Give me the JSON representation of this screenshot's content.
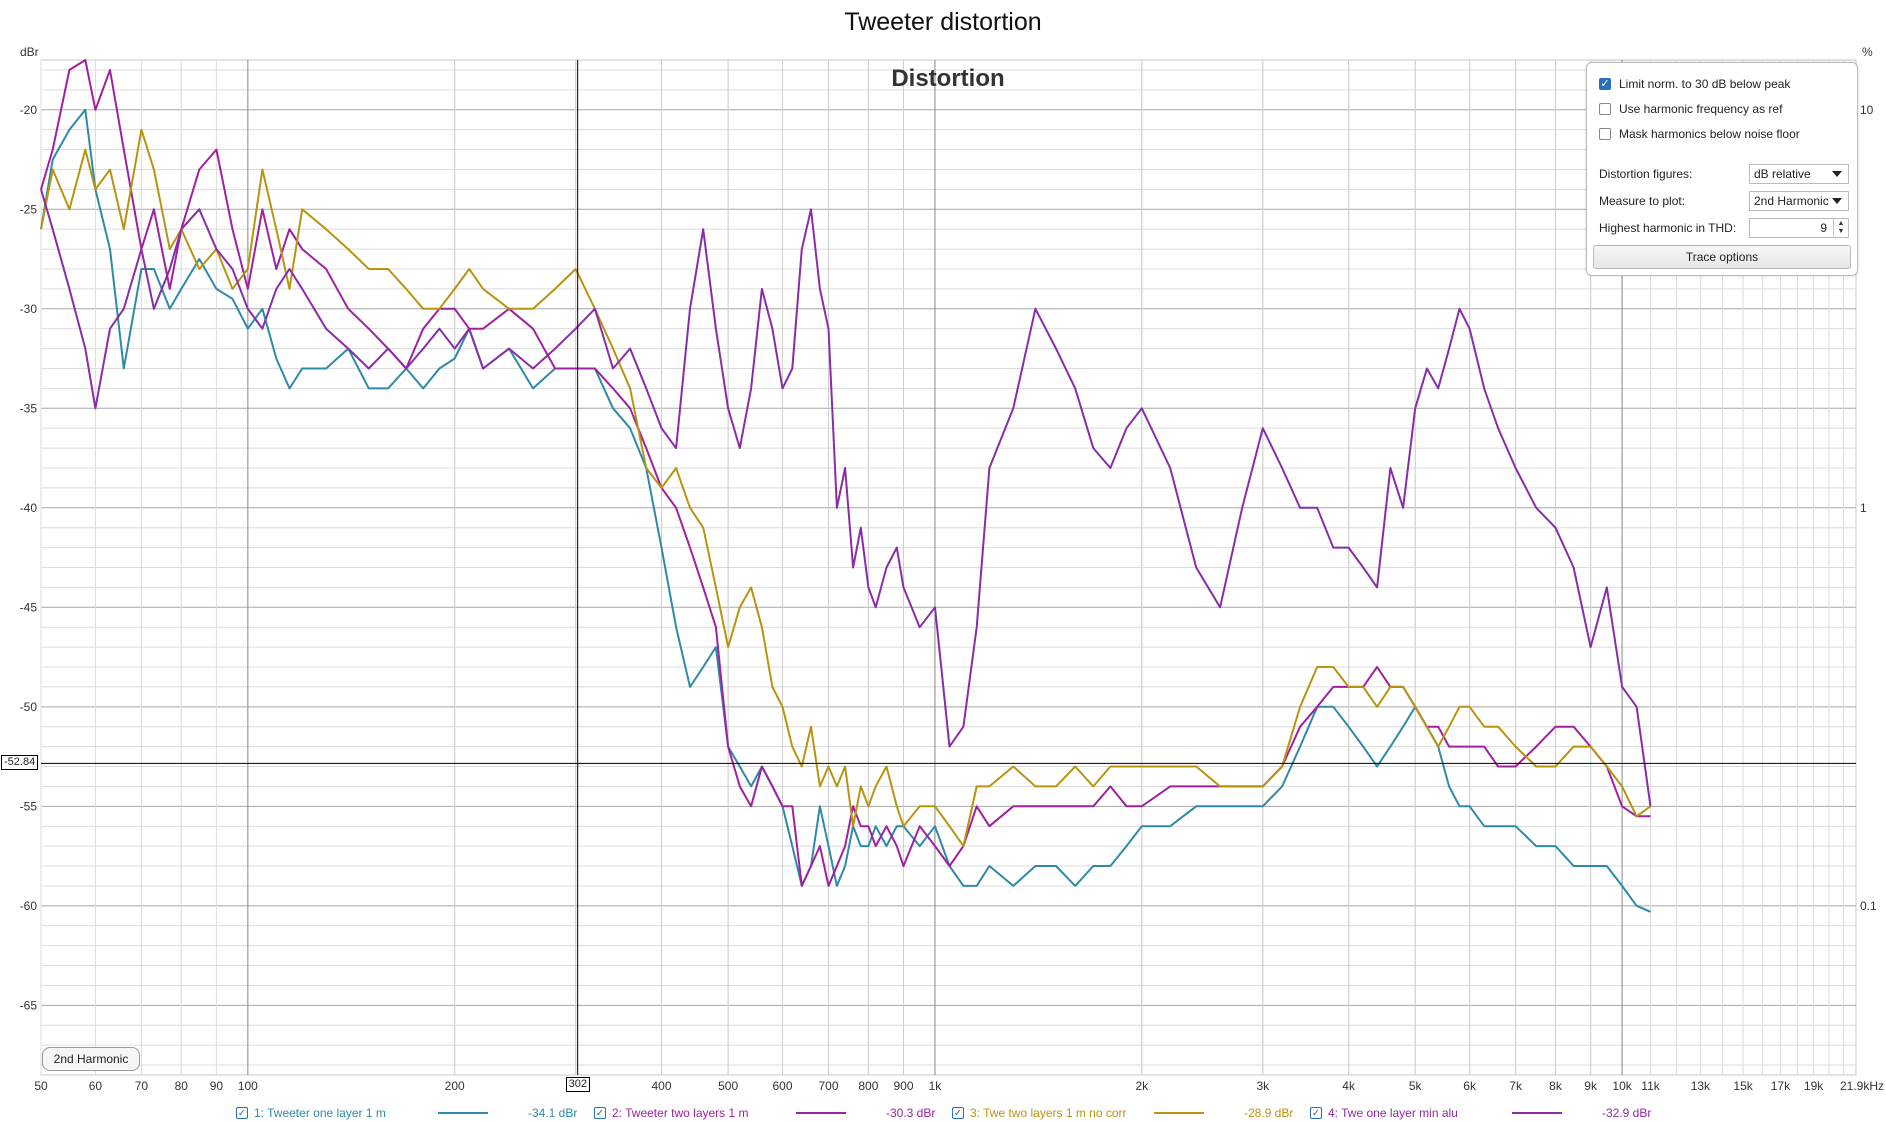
{
  "window_title": "Tweeter distortion",
  "colors": {
    "series1": "#2e8aa8",
    "series2": "#a020a0",
    "series3": "#b89410",
    "series4": "#8a2ca8",
    "grid_major": "#a8a8a8",
    "grid_minor": "#dcdcdc",
    "background": "#ffffff"
  },
  "options": {
    "limit_norm_label": "Limit norm. to 30 dB below peak",
    "limit_norm_checked": true,
    "use_harm_label": "Use harmonic frequency as ref",
    "use_harm_checked": false,
    "mask_label": "Mask harmonics below noise floor",
    "mask_checked": false,
    "dist_figures_label": "Distortion figures:",
    "dist_figures_value": "dB relative",
    "measure_label": "Measure to plot:",
    "measure_value": "2nd Harmonic",
    "highest_label": "Highest harmonic in THD:",
    "highest_value": "9",
    "trace_options_label": "Trace options"
  },
  "harmonic_button": "2nd Harmonic",
  "cursor": {
    "x_label": "302",
    "y_label": "-52.84"
  },
  "legend": [
    {
      "label": "1: Tweeter one layer 1 m",
      "value": "-34.1 dBr",
      "color": "#2e8aa8"
    },
    {
      "label": "2: Tweeter two layers 1 m",
      "value": "-30.3 dBr",
      "color": "#a020a0"
    },
    {
      "label": "3: Twe two layers 1 m no corr",
      "value": "-28.9 dBr",
      "color": "#b89410"
    },
    {
      "label": "4: Twe one layer min alu",
      "value": "-32.9 dBr",
      "color": "#8a2ca8"
    }
  ],
  "chart_data": {
    "type": "line",
    "title": "Distortion",
    "ylabel": "dBr",
    "ylabel_right": "%",
    "xlabel": "",
    "x_scale": "log",
    "xlim": [
      50,
      21900
    ],
    "ylim": [
      -68.5,
      -17.5
    ],
    "x_ticks": [
      {
        "v": 50,
        "t": "50"
      },
      {
        "v": 60,
        "t": "60"
      },
      {
        "v": 70,
        "t": "70"
      },
      {
        "v": 80,
        "t": "80"
      },
      {
        "v": 90,
        "t": "90"
      },
      {
        "v": 100,
        "t": "100"
      },
      {
        "v": 200,
        "t": "200"
      },
      {
        "v": 302,
        "t": "302"
      },
      {
        "v": 400,
        "t": "400"
      },
      {
        "v": 500,
        "t": "500"
      },
      {
        "v": 600,
        "t": "600"
      },
      {
        "v": 700,
        "t": "700"
      },
      {
        "v": 800,
        "t": "800"
      },
      {
        "v": 900,
        "t": "900"
      },
      {
        "v": 1000,
        "t": "1k"
      },
      {
        "v": 2000,
        "t": "2k"
      },
      {
        "v": 3000,
        "t": "3k"
      },
      {
        "v": 4000,
        "t": "4k"
      },
      {
        "v": 5000,
        "t": "5k"
      },
      {
        "v": 6000,
        "t": "6k"
      },
      {
        "v": 7000,
        "t": "7k"
      },
      {
        "v": 8000,
        "t": "8k"
      },
      {
        "v": 9000,
        "t": "9k"
      },
      {
        "v": 10000,
        "t": "10k"
      },
      {
        "v": 11000,
        "t": "11k"
      },
      {
        "v": 13000,
        "t": "13k"
      },
      {
        "v": 15000,
        "t": "15k"
      },
      {
        "v": 17000,
        "t": "17k"
      },
      {
        "v": 19000,
        "t": "19k"
      },
      {
        "v": 21900,
        "t": "21.9kHz"
      }
    ],
    "y_ticks": [
      -20,
      -25,
      -30,
      -35,
      -40,
      -45,
      -50,
      -55,
      -60,
      -65
    ],
    "y_tick_labels": [
      "-20",
      "-25",
      "-30",
      "-35",
      "-40",
      "-45",
      "-50",
      "-55",
      "-60",
      "-65"
    ],
    "right_ticks": [
      {
        "db": -20,
        "t": "10"
      },
      {
        "db": -40,
        "t": "1"
      },
      {
        "db": -60,
        "t": "0.1"
      }
    ],
    "cursor_x": 302,
    "cursor_y": -52.84,
    "grid": true,
    "series": [
      {
        "name": "1: Tweeter one layer 1 m",
        "color": "#2e8aa8",
        "x": [
          50,
          52,
          55,
          58,
          60,
          63,
          66,
          70,
          73,
          77,
          80,
          85,
          90,
          95,
          100,
          105,
          110,
          115,
          120,
          130,
          140,
          150,
          160,
          170,
          180,
          190,
          200,
          210,
          220,
          240,
          260,
          280,
          300,
          320,
          340,
          360,
          380,
          400,
          420,
          440,
          460,
          480,
          500,
          520,
          540,
          560,
          580,
          600,
          620,
          640,
          660,
          680,
          700,
          720,
          740,
          760,
          780,
          800,
          820,
          850,
          880,
          900,
          950,
          1000,
          1050,
          1100,
          1150,
          1200,
          1300,
          1400,
          1500,
          1600,
          1700,
          1800,
          1900,
          2000,
          2200,
          2400,
          2600,
          2800,
          3000,
          3200,
          3400,
          3600,
          3800,
          4000,
          4200,
          4400,
          4600,
          4800,
          5000,
          5200,
          5400,
          5600,
          5800,
          6000,
          6300,
          6600,
          7000,
          7500,
          8000,
          8500,
          9000,
          9500,
          10000,
          10500,
          11000
        ],
        "y": [
          -26,
          -22.5,
          -21,
          -20,
          -24,
          -27,
          -33,
          -28,
          -28,
          -30,
          -29,
          -27.5,
          -29,
          -29.5,
          -31,
          -30,
          -32.5,
          -34,
          -33,
          -33,
          -32,
          -34,
          -34,
          -33,
          -34,
          -33,
          -32.5,
          -31,
          -33,
          -32,
          -34,
          -33,
          -33,
          -33,
          -35,
          -36,
          -38,
          -42,
          -46,
          -49,
          -48,
          -47,
          -52,
          -53,
          -54,
          -53,
          -54,
          -55,
          -57,
          -59,
          -58,
          -55,
          -57,
          -59,
          -58,
          -56,
          -57,
          -57,
          -56,
          -57,
          -56,
          -56,
          -57,
          -56,
          -58,
          -59,
          -59,
          -58,
          -59,
          -58,
          -58,
          -59,
          -58,
          -58,
          -57,
          -56,
          -56,
          -55,
          -55,
          -55,
          -55,
          -54,
          -52,
          -50,
          -50,
          -51,
          -52,
          -53,
          -52,
          -51,
          -50,
          -51,
          -52,
          -54,
          -55,
          -55,
          -56,
          -56,
          -56,
          -57,
          -57,
          -58,
          -58,
          -58,
          -59,
          -60,
          -60.3
        ]
      },
      {
        "name": "2: Tweeter two layers 1 m",
        "color": "#a020a0",
        "x": [
          50,
          52,
          55,
          58,
          60,
          63,
          66,
          70,
          73,
          77,
          80,
          85,
          90,
          95,
          100,
          105,
          110,
          115,
          120,
          130,
          140,
          150,
          160,
          170,
          180,
          190,
          200,
          210,
          220,
          240,
          260,
          280,
          300,
          320,
          340,
          360,
          380,
          400,
          420,
          440,
          460,
          480,
          500,
          520,
          540,
          560,
          580,
          600,
          620,
          640,
          660,
          680,
          700,
          720,
          740,
          760,
          780,
          800,
          820,
          850,
          880,
          900,
          950,
          1000,
          1050,
          1100,
          1150,
          1200,
          1300,
          1400,
          1500,
          1600,
          1700,
          1800,
          1900,
          2000,
          2200,
          2400,
          2600,
          2800,
          3000,
          3200,
          3400,
          3600,
          3800,
          4000,
          4200,
          4400,
          4600,
          4800,
          5000,
          5200,
          5400,
          5600,
          5800,
          6000,
          6300,
          6600,
          7000,
          7500,
          8000,
          8500,
          9000,
          9500,
          10000,
          10500,
          11000
        ],
        "y": [
          -24,
          -22,
          -18,
          -17.5,
          -20,
          -18,
          -22,
          -27,
          -25,
          -29,
          -26,
          -23,
          -22,
          -26,
          -29,
          -25,
          -28,
          -26,
          -27,
          -28,
          -30,
          -31,
          -32,
          -33,
          -31,
          -30,
          -30,
          -31,
          -31,
          -30,
          -31,
          -33,
          -33,
          -33,
          -34,
          -35,
          -37,
          -39,
          -40,
          -42,
          -44,
          -46,
          -52,
          -54,
          -55,
          -53,
          -54,
          -55,
          -55,
          -59,
          -58,
          -57,
          -59,
          -58,
          -57,
          -55,
          -56,
          -56,
          -57,
          -56,
          -57,
          -58,
          -56,
          -57,
          -58,
          -57,
          -55,
          -56,
          -55,
          -55,
          -55,
          -55,
          -55,
          -54,
          -55,
          -55,
          -54,
          -54,
          -54,
          -54,
          -54,
          -53,
          -51,
          -50,
          -49,
          -49,
          -49,
          -48,
          -49,
          -49,
          -50,
          -51,
          -51,
          -52,
          -52,
          -52,
          -52,
          -53,
          -53,
          -52,
          -51,
          -51,
          -52,
          -53,
          -55,
          -55.5,
          -55.5
        ]
      },
      {
        "name": "3: Twe two layers 1 m no corr",
        "color": "#b89410",
        "x": [
          50,
          52,
          55,
          58,
          60,
          63,
          66,
          70,
          73,
          77,
          80,
          85,
          90,
          95,
          100,
          105,
          110,
          115,
          120,
          130,
          140,
          150,
          160,
          170,
          180,
          190,
          200,
          210,
          220,
          240,
          260,
          280,
          300,
          320,
          340,
          360,
          380,
          400,
          420,
          440,
          460,
          480,
          500,
          520,
          540,
          560,
          580,
          600,
          620,
          640,
          660,
          680,
          700,
          720,
          740,
          760,
          780,
          800,
          820,
          850,
          880,
          900,
          950,
          1000,
          1050,
          1100,
          1150,
          1200,
          1300,
          1400,
          1500,
          1600,
          1700,
          1800,
          1900,
          2000,
          2200,
          2400,
          2600,
          2800,
          3000,
          3200,
          3400,
          3600,
          3800,
          4000,
          4200,
          4400,
          4600,
          4800,
          5000,
          5200,
          5400,
          5600,
          5800,
          6000,
          6300,
          6600,
          7000,
          7500,
          8000,
          8500,
          9000,
          9500,
          10000,
          10500,
          11000
        ],
        "y": [
          -26,
          -23,
          -25,
          -22,
          -24,
          -23,
          -26,
          -21,
          -23,
          -27,
          -26,
          -28,
          -27,
          -29,
          -28,
          -23,
          -26,
          -29,
          -25,
          -26,
          -27,
          -28,
          -28,
          -29,
          -30,
          -30,
          -29,
          -28,
          -29,
          -30,
          -30,
          -29,
          -28,
          -30,
          -32,
          -34,
          -38,
          -39,
          -38,
          -40,
          -41,
          -44,
          -47,
          -45,
          -44,
          -46,
          -49,
          -50,
          -52,
          -53,
          -51,
          -54,
          -53,
          -54,
          -53,
          -56,
          -54,
          -55,
          -54,
          -53,
          -55,
          -56,
          -55,
          -55,
          -56,
          -57,
          -54,
          -54,
          -53,
          -54,
          -54,
          -53,
          -54,
          -53,
          -53,
          -53,
          -53,
          -53,
          -54,
          -54,
          -54,
          -53,
          -50,
          -48,
          -48,
          -49,
          -49,
          -50,
          -49,
          -49,
          -50,
          -51,
          -52,
          -51,
          -50,
          -50,
          -51,
          -51,
          -52,
          -53,
          -53,
          -52,
          -52,
          -53,
          -54,
          -55.5,
          -55
        ]
      },
      {
        "name": "4: Twe one layer min alu",
        "color": "#8a2ca8",
        "x": [
          50,
          52,
          55,
          58,
          60,
          63,
          66,
          70,
          73,
          77,
          80,
          85,
          90,
          95,
          100,
          105,
          110,
          115,
          120,
          130,
          140,
          150,
          160,
          170,
          180,
          190,
          200,
          210,
          220,
          240,
          260,
          280,
          300,
          320,
          340,
          360,
          380,
          400,
          420,
          440,
          460,
          480,
          500,
          520,
          540,
          560,
          580,
          600,
          620,
          640,
          660,
          680,
          700,
          720,
          740,
          760,
          780,
          800,
          820,
          850,
          880,
          900,
          950,
          1000,
          1050,
          1100,
          1150,
          1200,
          1300,
          1400,
          1500,
          1600,
          1700,
          1800,
          1900,
          2000,
          2200,
          2400,
          2600,
          2800,
          3000,
          3200,
          3400,
          3600,
          3800,
          4000,
          4200,
          4400,
          4600,
          4800,
          5000,
          5200,
          5400,
          5600,
          5800,
          6000,
          6300,
          6600,
          7000,
          7500,
          8000,
          8500,
          9000,
          9500,
          10000,
          10500,
          11000
        ],
        "y": [
          -24,
          -26,
          -29,
          -32,
          -35,
          -31,
          -30,
          -27,
          -30,
          -28,
          -26,
          -25,
          -27,
          -28,
          -30,
          -31,
          -29,
          -28,
          -29,
          -31,
          -32,
          -33,
          -32,
          -33,
          -32,
          -31,
          -32,
          -31,
          -33,
          -32,
          -33,
          -32,
          -31,
          -30,
          -33,
          -32,
          -34,
          -36,
          -37,
          -30,
          -26,
          -31,
          -35,
          -37,
          -34,
          -29,
          -31,
          -34,
          -33,
          -27,
          -25,
          -29,
          -31,
          -40,
          -38,
          -43,
          -41,
          -44,
          -45,
          -43,
          -42,
          -44,
          -46,
          -45,
          -52,
          -51,
          -46,
          -38,
          -35,
          -30,
          -32,
          -34,
          -37,
          -38,
          -36,
          -35,
          -38,
          -43,
          -45,
          -40,
          -36,
          -38,
          -40,
          -40,
          -42,
          -42,
          -43,
          -44,
          -38,
          -40,
          -35,
          -33,
          -34,
          -32,
          -30,
          -31,
          -34,
          -36,
          -38,
          -40,
          -41,
          -43,
          -47,
          -44,
          -49,
          -50,
          -55
        ]
      }
    ]
  }
}
